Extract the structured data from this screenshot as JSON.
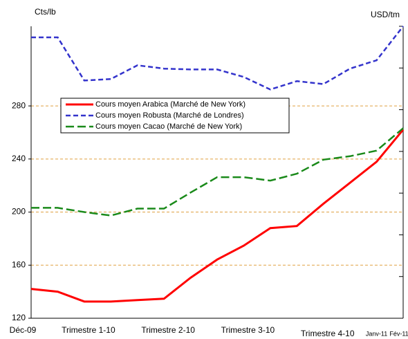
{
  "chart_data": {
    "type": "line",
    "ylabel": "Cts/lb",
    "y2label": "USD/tm",
    "categories": [
      "Déc-09",
      null,
      "Trimestre 1-10",
      null,
      null,
      "Trimestre 2-10",
      null,
      null,
      "Trimestre 3-10",
      null,
      null,
      "Trimestre 4-10",
      null,
      "Janv-11",
      "Fév-11"
    ],
    "series": [
      {
        "name": "Cours moyen Arabica (Marché de New York)",
        "color": "#ff0000",
        "style": "solid",
        "values": [
          142.1,
          140,
          132.6,
          132.6,
          133.7,
          134.7,
          150.5,
          164.2,
          174.7,
          187.9,
          189.5,
          206.3,
          222.1,
          237.9,
          262.1
        ]
      },
      {
        "name": "Cours moyen Robusta (Marché de Londres)",
        "color": "#3333cc",
        "style": "dashed",
        "axis": "y2",
        "values": [
          2347,
          2347,
          2140,
          2147,
          2213,
          2197,
          2193,
          2193,
          2157,
          2097,
          2137,
          2123,
          2197,
          2237,
          2400
        ]
      },
      {
        "name": "Cours moyen Cacao (Marché de New York)",
        "color": "#1a8a1a",
        "style": "longdash",
        "values": [
          203.2,
          203.2,
          200,
          197.4,
          202.6,
          202.6,
          214.7,
          226.3,
          226.3,
          223.7,
          228.9,
          239.5,
          242.1,
          246.3,
          263.2
        ]
      }
    ],
    "ylim": [
      120,
      340
    ],
    "yticks": [
      120,
      160,
      200,
      240,
      280
    ],
    "y2lim": [
      1000,
      2400
    ],
    "y2ticks": [
      1000,
      1200,
      1400,
      1600,
      1800,
      2000,
      2200,
      2400
    ],
    "grid": true,
    "grid_color": "#e0a040"
  }
}
